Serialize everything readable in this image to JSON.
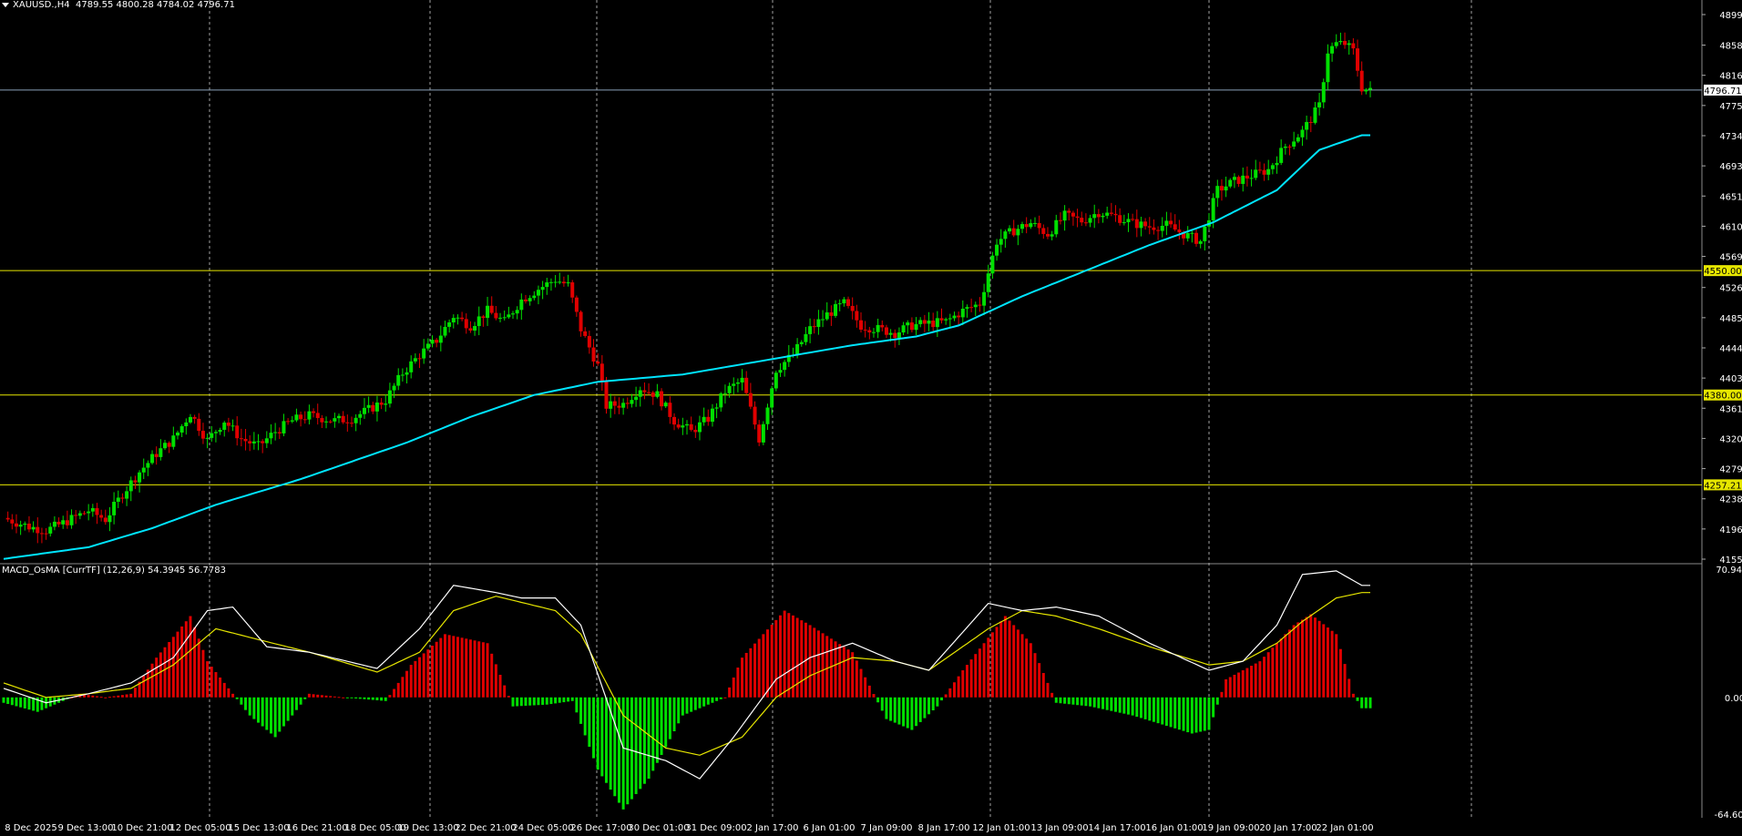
{
  "header": {
    "symbol": "XAUUSD.,H4",
    "ohlc": "4789.55 4800.28 4784.02 4796.71"
  },
  "indicator": {
    "label": "MACD_OsMA [CurrTF] (12,26,9) 54.3945 56.7783"
  },
  "colors": {
    "background": "#000000",
    "bull_candle": "#00e000",
    "bear_candle": "#e00000",
    "ma_line": "#00e5ff",
    "level_line": "#e6e600",
    "price_line": "#8aa0b8",
    "macd_line": "#ffffff",
    "signal_line": "#e6e600",
    "grid": "#c8c8c8"
  },
  "chart_data": [
    {
      "type": "candlestick",
      "ylim": [
        4155.65,
        4899.9
      ],
      "current_price": "4796.71",
      "y_ticks": [
        "4899.90",
        "4858.15",
        "4816.90",
        "4775.65",
        "4734.40",
        "4693.15",
        "4651.90",
        "4610.65",
        "4569.40",
        "4526.90",
        "4485.65",
        "4444.40",
        "4403.15",
        "4361.90",
        "4320.65",
        "4279.40",
        "4238.15",
        "4196.90",
        "4155.65"
      ],
      "x_labels": [
        "8 Dec 2025",
        "9 Dec 13:00",
        "10 Dec 21:00",
        "12 Dec 05:00",
        "15 Dec 13:00",
        "16 Dec 21:00",
        "18 Dec 05:00",
        "19 Dec 13:00",
        "22 Dec 21:00",
        "24 Dec 05:00",
        "26 Dec 17:00",
        "30 Dec 01:00",
        "31 Dec 09:00",
        "2 Jan 17:00",
        "6 Jan 01:00",
        "7 Jan 09:00",
        "8 Jan 17:00",
        "12 Jan 01:00",
        "13 Jan 09:00",
        "14 Jan 17:00",
        "16 Jan 01:00",
        "19 Jan 09:00",
        "20 Jan 17:00",
        "22 Jan 01:00"
      ],
      "levels": [
        {
          "value": 4550.0,
          "label": "4550.00"
        },
        {
          "value": 4380.0,
          "label": "4380.00"
        },
        {
          "value": 4257.21,
          "label": "4257.21"
        }
      ],
      "close_path": [
        [
          0,
          4212
        ],
        [
          6,
          4200
        ],
        [
          10,
          4195
        ],
        [
          14,
          4205
        ],
        [
          20,
          4222
        ],
        [
          24,
          4210
        ],
        [
          28,
          4245
        ],
        [
          32,
          4275
        ],
        [
          36,
          4300
        ],
        [
          40,
          4320
        ],
        [
          44,
          4355
        ],
        [
          48,
          4318
        ],
        [
          52,
          4345
        ],
        [
          56,
          4320
        ],
        [
          60,
          4310
        ],
        [
          64,
          4330
        ],
        [
          68,
          4345
        ],
        [
          72,
          4352
        ],
        [
          78,
          4345
        ],
        [
          82,
          4348
        ],
        [
          86,
          4360
        ],
        [
          90,
          4373
        ],
        [
          94,
          4410
        ],
        [
          98,
          4435
        ],
        [
          102,
          4455
        ],
        [
          106,
          4488
        ],
        [
          110,
          4475
        ],
        [
          114,
          4495
        ],
        [
          118,
          4480
        ],
        [
          122,
          4510
        ],
        [
          126,
          4525
        ],
        [
          130,
          4538
        ],
        [
          133,
          4530
        ],
        [
          136,
          4470
        ],
        [
          140,
          4420
        ],
        [
          142,
          4365
        ],
        [
          146,
          4368
        ],
        [
          150,
          4390
        ],
        [
          154,
          4380
        ],
        [
          158,
          4345
        ],
        [
          162,
          4330
        ],
        [
          166,
          4348
        ],
        [
          170,
          4385
        ],
        [
          174,
          4400
        ],
        [
          178,
          4320
        ],
        [
          182,
          4415
        ],
        [
          186,
          4435
        ],
        [
          190,
          4470
        ],
        [
          194,
          4490
        ],
        [
          198,
          4505
        ],
        [
          202,
          4475
        ],
        [
          206,
          4470
        ],
        [
          210,
          4465
        ],
        [
          214,
          4475
        ],
        [
          218,
          4478
        ],
        [
          222,
          4480
        ],
        [
          226,
          4495
        ],
        [
          230,
          4505
        ],
        [
          234,
          4590
        ],
        [
          238,
          4605
        ],
        [
          242,
          4615
        ],
        [
          246,
          4600
        ],
        [
          250,
          4625
        ],
        [
          254,
          4618
        ],
        [
          258,
          4630
        ],
        [
          262,
          4624
        ],
        [
          266,
          4615
        ],
        [
          270,
          4610
        ],
        [
          274,
          4612
        ],
        [
          278,
          4600
        ],
        [
          282,
          4590
        ],
        [
          286,
          4660
        ],
        [
          290,
          4672
        ],
        [
          294,
          4680
        ],
        [
          298,
          4688
        ],
        [
          302,
          4720
        ],
        [
          306,
          4740
        ],
        [
          310,
          4775
        ],
        [
          312,
          4850
        ],
        [
          314,
          4860
        ],
        [
          316,
          4860
        ],
        [
          318,
          4850
        ],
        [
          320,
          4800
        ],
        [
          322,
          4795
        ]
      ],
      "ma_path": [
        [
          0,
          4156
        ],
        [
          20,
          4172
        ],
        [
          35,
          4198
        ],
        [
          50,
          4230
        ],
        [
          70,
          4265
        ],
        [
          95,
          4315
        ],
        [
          110,
          4350
        ],
        [
          125,
          4380
        ],
        [
          140,
          4398
        ],
        [
          160,
          4408
        ],
        [
          180,
          4428
        ],
        [
          200,
          4448
        ],
        [
          215,
          4460
        ],
        [
          225,
          4475
        ],
        [
          240,
          4515
        ],
        [
          255,
          4550
        ],
        [
          270,
          4585
        ],
        [
          285,
          4616
        ],
        [
          300,
          4660
        ],
        [
          310,
          4715
        ],
        [
          320,
          4735
        ]
      ]
    },
    {
      "type": "bar",
      "name": "MACD_OsMA",
      "ylim": [
        -64.6092,
        70.9478
      ],
      "y_ticks": [
        "70.9478",
        "0.00",
        "-64.6092"
      ],
      "histogram_path": [
        [
          0,
          -3
        ],
        [
          8,
          -8
        ],
        [
          14,
          -2
        ],
        [
          18,
          2
        ],
        [
          24,
          0
        ],
        [
          30,
          2
        ],
        [
          36,
          22
        ],
        [
          44,
          45
        ],
        [
          48,
          20
        ],
        [
          58,
          -10
        ],
        [
          64,
          -22
        ],
        [
          72,
          2
        ],
        [
          80,
          0
        ],
        [
          90,
          -2
        ],
        [
          96,
          18
        ],
        [
          104,
          35
        ],
        [
          114,
          30
        ],
        [
          120,
          -5
        ],
        [
          128,
          -4
        ],
        [
          134,
          -2
        ],
        [
          140,
          -40
        ],
        [
          146,
          -62
        ],
        [
          152,
          -45
        ],
        [
          160,
          -10
        ],
        [
          170,
          0
        ],
        [
          174,
          22
        ],
        [
          184,
          48
        ],
        [
          190,
          40
        ],
        [
          200,
          25
        ],
        [
          208,
          -12
        ],
        [
          214,
          -18
        ],
        [
          220,
          -5
        ],
        [
          226,
          15
        ],
        [
          236,
          45
        ],
        [
          242,
          30
        ],
        [
          248,
          -3
        ],
        [
          256,
          -5
        ],
        [
          266,
          -10
        ],
        [
          280,
          -20
        ],
        [
          284,
          -18
        ],
        [
          288,
          10
        ],
        [
          296,
          20
        ],
        [
          304,
          40
        ],
        [
          308,
          46
        ],
        [
          314,
          35
        ],
        [
          318,
          2
        ],
        [
          320,
          -6
        ]
      ],
      "macd_path": [
        [
          0,
          5
        ],
        [
          10,
          -3
        ],
        [
          20,
          2
        ],
        [
          30,
          8
        ],
        [
          40,
          22
        ],
        [
          48,
          48
        ],
        [
          54,
          50
        ],
        [
          62,
          28
        ],
        [
          72,
          25
        ],
        [
          88,
          16
        ],
        [
          98,
          38
        ],
        [
          106,
          62
        ],
        [
          116,
          58
        ],
        [
          122,
          55
        ],
        [
          130,
          55
        ],
        [
          136,
          40
        ],
        [
          146,
          -28
        ],
        [
          156,
          -35
        ],
        [
          164,
          -45
        ],
        [
          172,
          -22
        ],
        [
          182,
          10
        ],
        [
          190,
          22
        ],
        [
          200,
          30
        ],
        [
          210,
          20
        ],
        [
          218,
          15
        ],
        [
          232,
          52
        ],
        [
          240,
          48
        ],
        [
          248,
          50
        ],
        [
          258,
          45
        ],
        [
          270,
          30
        ],
        [
          284,
          15
        ],
        [
          292,
          20
        ],
        [
          300,
          40
        ],
        [
          306,
          68
        ],
        [
          314,
          70
        ],
        [
          320,
          62
        ]
      ],
      "signal_path": [
        [
          0,
          8
        ],
        [
          10,
          0
        ],
        [
          20,
          2
        ],
        [
          30,
          5
        ],
        [
          40,
          18
        ],
        [
          50,
          38
        ],
        [
          60,
          32
        ],
        [
          72,
          25
        ],
        [
          88,
          14
        ],
        [
          98,
          25
        ],
        [
          106,
          48
        ],
        [
          116,
          56
        ],
        [
          130,
          48
        ],
        [
          136,
          35
        ],
        [
          146,
          -10
        ],
        [
          156,
          -28
        ],
        [
          164,
          -32
        ],
        [
          174,
          -22
        ],
        [
          182,
          0
        ],
        [
          190,
          12
        ],
        [
          200,
          22
        ],
        [
          210,
          20
        ],
        [
          218,
          15
        ],
        [
          232,
          38
        ],
        [
          240,
          48
        ],
        [
          248,
          45
        ],
        [
          258,
          38
        ],
        [
          270,
          28
        ],
        [
          284,
          18
        ],
        [
          292,
          20
        ],
        [
          300,
          30
        ],
        [
          306,
          42
        ],
        [
          314,
          55
        ],
        [
          320,
          58
        ]
      ]
    }
  ]
}
